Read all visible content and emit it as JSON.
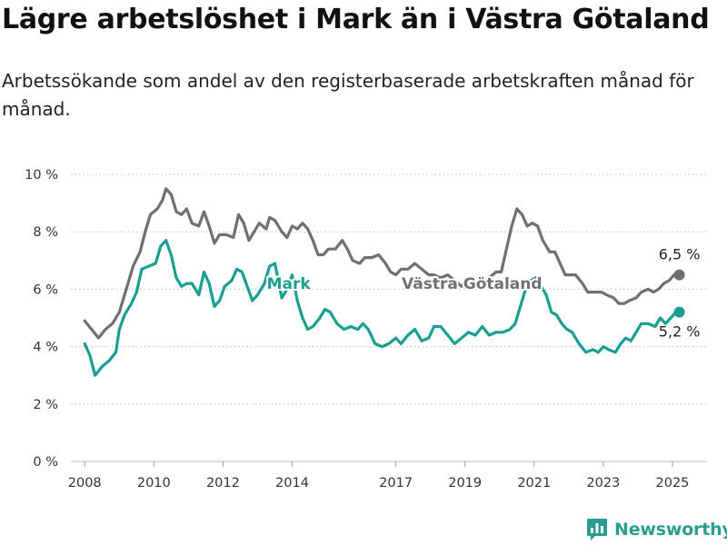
{
  "header": {
    "title": "Lägre arbetslöshet i Mark än i Västra Götaland",
    "subtitle": "Arbetssökande som andel av den registerbaserade arbetskraften månad för månad."
  },
  "brand": {
    "name": "Newsworthy",
    "icon": "bar-chart-logo-icon",
    "color": "#2a9d8f"
  },
  "chart_data": {
    "type": "line",
    "title": "Lägre arbetslöshet i Mark än i Västra Götaland",
    "subtitle": "Arbetssökande som andel av den registerbaserade arbetskraften månad för månad.",
    "xlabel": "",
    "ylabel": "",
    "xlim": [
      2007.6,
      2026.0
    ],
    "ylim": [
      0,
      10
    ],
    "x_ticks": [
      2008,
      2010,
      2012,
      2014,
      2017,
      2019,
      2021,
      2023,
      2025
    ],
    "x_tick_labels": [
      "2008",
      "2010",
      "2012",
      "2014",
      "2017",
      "2019",
      "2021",
      "2023",
      "2025"
    ],
    "y_ticks": [
      0,
      2,
      4,
      6,
      8,
      10
    ],
    "y_tick_labels": [
      "0 %",
      "2 %",
      "4 %",
      "6 %",
      "8 %",
      "10 %"
    ],
    "grid": "horizontal-dotted",
    "legend": "inline-labels",
    "series": [
      {
        "name": "Västra Götaland",
        "color": "#6f6f75",
        "end_label": "6,5 %",
        "points": [
          [
            2008.0,
            4.9
          ],
          [
            2008.2,
            4.6
          ],
          [
            2008.4,
            4.3
          ],
          [
            2008.6,
            4.6
          ],
          [
            2008.8,
            4.8
          ],
          [
            2009.0,
            5.2
          ],
          [
            2009.2,
            6.0
          ],
          [
            2009.4,
            6.8
          ],
          [
            2009.6,
            7.3
          ],
          [
            2009.75,
            8.0
          ],
          [
            2009.9,
            8.6
          ],
          [
            2010.1,
            8.8
          ],
          [
            2010.25,
            9.1
          ],
          [
            2010.35,
            9.5
          ],
          [
            2010.5,
            9.3
          ],
          [
            2010.65,
            8.7
          ],
          [
            2010.8,
            8.6
          ],
          [
            2010.95,
            8.8
          ],
          [
            2011.1,
            8.3
          ],
          [
            2011.3,
            8.2
          ],
          [
            2011.45,
            8.7
          ],
          [
            2011.6,
            8.2
          ],
          [
            2011.75,
            7.6
          ],
          [
            2011.9,
            7.9
          ],
          [
            2012.1,
            7.9
          ],
          [
            2012.3,
            7.8
          ],
          [
            2012.45,
            8.6
          ],
          [
            2012.6,
            8.3
          ],
          [
            2012.75,
            7.7
          ],
          [
            2012.9,
            8.0
          ],
          [
            2013.05,
            8.3
          ],
          [
            2013.25,
            8.1
          ],
          [
            2013.35,
            8.5
          ],
          [
            2013.5,
            8.4
          ],
          [
            2013.7,
            8.0
          ],
          [
            2013.85,
            7.8
          ],
          [
            2014.0,
            8.2
          ],
          [
            2014.15,
            8.1
          ],
          [
            2014.3,
            8.3
          ],
          [
            2014.45,
            8.1
          ],
          [
            2014.6,
            7.7
          ],
          [
            2014.75,
            7.2
          ],
          [
            2014.9,
            7.2
          ],
          [
            2015.05,
            7.4
          ],
          [
            2015.25,
            7.4
          ],
          [
            2015.45,
            7.7
          ],
          [
            2015.6,
            7.4
          ],
          [
            2015.75,
            7.0
          ],
          [
            2015.95,
            6.9
          ],
          [
            2016.1,
            7.1
          ],
          [
            2016.3,
            7.1
          ],
          [
            2016.5,
            7.2
          ],
          [
            2016.7,
            6.9
          ],
          [
            2016.85,
            6.6
          ],
          [
            2017.0,
            6.5
          ],
          [
            2017.15,
            6.7
          ],
          [
            2017.35,
            6.7
          ],
          [
            2017.55,
            6.9
          ],
          [
            2017.75,
            6.7
          ],
          [
            2017.95,
            6.5
          ],
          [
            2018.1,
            6.5
          ],
          [
            2018.3,
            6.4
          ],
          [
            2018.5,
            6.5
          ],
          [
            2018.7,
            6.3
          ],
          [
            2018.9,
            6.1
          ],
          [
            2019.1,
            6.3
          ],
          [
            2019.3,
            6.2
          ],
          [
            2019.5,
            6.2
          ],
          [
            2019.7,
            6.4
          ],
          [
            2019.9,
            6.6
          ],
          [
            2020.05,
            6.6
          ],
          [
            2020.2,
            7.4
          ],
          [
            2020.35,
            8.2
          ],
          [
            2020.5,
            8.8
          ],
          [
            2020.65,
            8.6
          ],
          [
            2020.8,
            8.2
          ],
          [
            2020.95,
            8.3
          ],
          [
            2021.1,
            8.2
          ],
          [
            2021.25,
            7.7
          ],
          [
            2021.45,
            7.3
          ],
          [
            2021.6,
            7.3
          ],
          [
            2021.75,
            6.9
          ],
          [
            2021.9,
            6.5
          ],
          [
            2022.05,
            6.5
          ],
          [
            2022.2,
            6.5
          ],
          [
            2022.4,
            6.2
          ],
          [
            2022.55,
            5.9
          ],
          [
            2022.75,
            5.9
          ],
          [
            2022.95,
            5.9
          ],
          [
            2023.1,
            5.8
          ],
          [
            2023.3,
            5.7
          ],
          [
            2023.45,
            5.5
          ],
          [
            2023.6,
            5.5
          ],
          [
            2023.75,
            5.6
          ],
          [
            2023.95,
            5.7
          ],
          [
            2024.1,
            5.9
          ],
          [
            2024.3,
            6.0
          ],
          [
            2024.45,
            5.9
          ],
          [
            2024.6,
            6.0
          ],
          [
            2024.75,
            6.2
          ],
          [
            2024.9,
            6.3
          ],
          [
            2025.05,
            6.5
          ],
          [
            2025.2,
            6.5
          ]
        ]
      },
      {
        "name": "Mark",
        "color": "#1a9e92",
        "end_label": "5,2 %",
        "points": [
          [
            2008.0,
            4.1
          ],
          [
            2008.15,
            3.7
          ],
          [
            2008.3,
            3.0
          ],
          [
            2008.5,
            3.3
          ],
          [
            2008.7,
            3.5
          ],
          [
            2008.9,
            3.8
          ],
          [
            2009.0,
            4.6
          ],
          [
            2009.15,
            5.1
          ],
          [
            2009.35,
            5.5
          ],
          [
            2009.5,
            5.9
          ],
          [
            2009.65,
            6.7
          ],
          [
            2009.85,
            6.8
          ],
          [
            2010.05,
            6.9
          ],
          [
            2010.2,
            7.5
          ],
          [
            2010.35,
            7.7
          ],
          [
            2010.5,
            7.2
          ],
          [
            2010.65,
            6.4
          ],
          [
            2010.8,
            6.1
          ],
          [
            2010.95,
            6.2
          ],
          [
            2011.1,
            6.2
          ],
          [
            2011.3,
            5.8
          ],
          [
            2011.45,
            6.6
          ],
          [
            2011.6,
            6.2
          ],
          [
            2011.75,
            5.4
          ],
          [
            2011.9,
            5.6
          ],
          [
            2012.05,
            6.1
          ],
          [
            2012.25,
            6.3
          ],
          [
            2012.4,
            6.7
          ],
          [
            2012.55,
            6.6
          ],
          [
            2012.7,
            6.1
          ],
          [
            2012.85,
            5.6
          ],
          [
            2013.0,
            5.8
          ],
          [
            2013.2,
            6.2
          ],
          [
            2013.35,
            6.8
          ],
          [
            2013.5,
            6.9
          ],
          [
            2013.7,
            5.7
          ],
          [
            2013.85,
            6.0
          ],
          [
            2014.0,
            6.5
          ],
          [
            2014.15,
            5.6
          ],
          [
            2014.3,
            5.0
          ],
          [
            2014.45,
            4.6
          ],
          [
            2014.6,
            4.7
          ],
          [
            2014.8,
            5.0
          ],
          [
            2014.95,
            5.3
          ],
          [
            2015.1,
            5.2
          ],
          [
            2015.3,
            4.8
          ],
          [
            2015.5,
            4.6
          ],
          [
            2015.7,
            4.7
          ],
          [
            2015.9,
            4.6
          ],
          [
            2016.05,
            4.8
          ],
          [
            2016.2,
            4.6
          ],
          [
            2016.4,
            4.1
          ],
          [
            2016.6,
            4.0
          ],
          [
            2016.8,
            4.1
          ],
          [
            2017.0,
            4.3
          ],
          [
            2017.15,
            4.1
          ],
          [
            2017.35,
            4.4
          ],
          [
            2017.55,
            4.6
          ],
          [
            2017.75,
            4.2
          ],
          [
            2017.95,
            4.3
          ],
          [
            2018.1,
            4.7
          ],
          [
            2018.3,
            4.7
          ],
          [
            2018.5,
            4.4
          ],
          [
            2018.7,
            4.1
          ],
          [
            2018.9,
            4.3
          ],
          [
            2019.1,
            4.5
          ],
          [
            2019.3,
            4.4
          ],
          [
            2019.5,
            4.7
          ],
          [
            2019.7,
            4.4
          ],
          [
            2019.9,
            4.5
          ],
          [
            2020.1,
            4.5
          ],
          [
            2020.3,
            4.6
          ],
          [
            2020.45,
            4.8
          ],
          [
            2020.6,
            5.4
          ],
          [
            2020.75,
            6.0
          ],
          [
            2020.9,
            6.3
          ],
          [
            2021.05,
            6.4
          ],
          [
            2021.2,
            6.1
          ],
          [
            2021.35,
            5.8
          ],
          [
            2021.5,
            5.2
          ],
          [
            2021.65,
            5.1
          ],
          [
            2021.8,
            4.8
          ],
          [
            2021.95,
            4.6
          ],
          [
            2022.1,
            4.5
          ],
          [
            2022.3,
            4.1
          ],
          [
            2022.5,
            3.8
          ],
          [
            2022.7,
            3.9
          ],
          [
            2022.85,
            3.8
          ],
          [
            2023.0,
            4.0
          ],
          [
            2023.15,
            3.9
          ],
          [
            2023.35,
            3.8
          ],
          [
            2023.5,
            4.1
          ],
          [
            2023.65,
            4.3
          ],
          [
            2023.8,
            4.2
          ],
          [
            2023.95,
            4.5
          ],
          [
            2024.1,
            4.8
          ],
          [
            2024.3,
            4.8
          ],
          [
            2024.5,
            4.7
          ],
          [
            2024.65,
            5.0
          ],
          [
            2024.8,
            4.8
          ],
          [
            2024.95,
            5.0
          ],
          [
            2025.1,
            5.2
          ],
          [
            2025.2,
            5.2
          ]
        ]
      }
    ]
  }
}
